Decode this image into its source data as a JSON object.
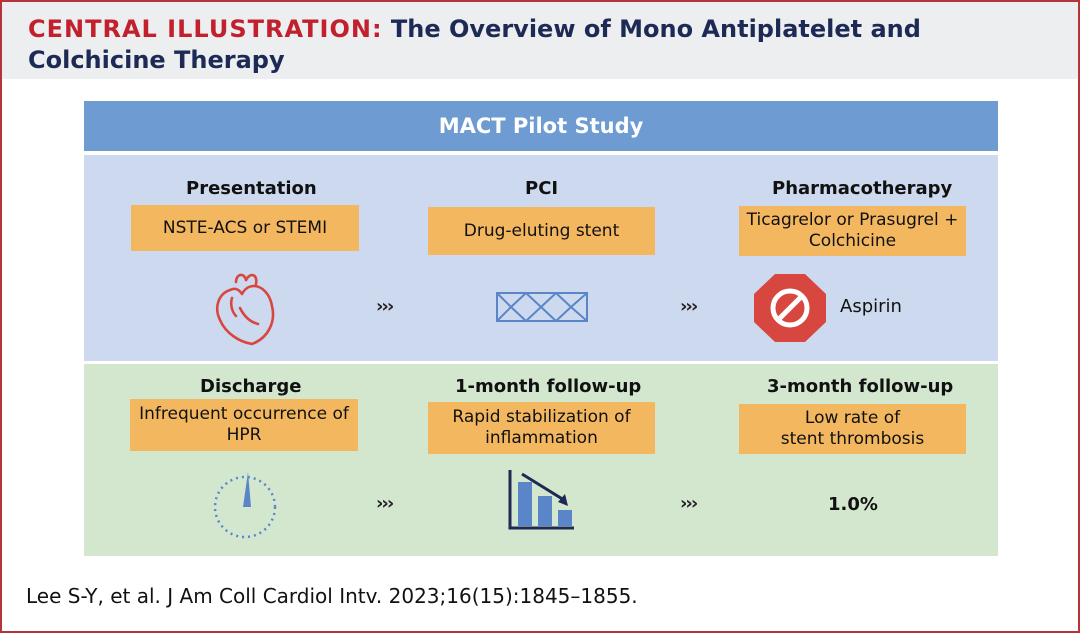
{
  "header": {
    "title_prefix": "CENTRAL ILLUSTRATION:",
    "title_line1": "The Overview of Mono Antiplatelet and",
    "title_line2": "Colchicine Therapy"
  },
  "banner": "MACT Pilot Study",
  "row1": {
    "presentation": {
      "label": "Presentation",
      "box": [
        "NSTE-ACS or STEMI"
      ],
      "icon": "heart-icon"
    },
    "pci": {
      "label": "PCI",
      "box": [
        "Drug-eluting stent"
      ],
      "icon": "stent-icon"
    },
    "pharmacotherapy": {
      "label": "Pharmacotherapy",
      "box": [
        "Ticagrelor or Prasugrel +",
        "Colchicine"
      ],
      "icon": "prohibited-sign-icon",
      "note": "Aspirin"
    }
  },
  "row2": {
    "discharge": {
      "label": "Discharge",
      "box": [
        "Infrequent occurrence of",
        "HPR"
      ],
      "icon": "dial-gauge-icon"
    },
    "followup1": {
      "label": "1-month follow-up",
      "box": [
        "Rapid stabilization of",
        "inflammation"
      ],
      "icon": "declining-bar-chart-icon"
    },
    "followup3": {
      "label": "3-month follow-up",
      "box": [
        "Low rate of",
        "stent thrombosis"
      ],
      "value": "1.0%"
    }
  },
  "arrow_glyph": "›››",
  "citation": "Lee S-Y, et al. J Am Coll Cardiol Intv. 2023;16(15):1845–1855.",
  "colors": {
    "border": "#b5343a",
    "title_red": "#c2202d",
    "title_navy": "#1c2a55",
    "banner": "#6e9bd1",
    "band_blue": "#cdd9ef",
    "band_green": "#d3e7cf",
    "box_orange": "#f3b760",
    "icon_red": "#d8473f",
    "icon_blue": "#5a86c9"
  }
}
